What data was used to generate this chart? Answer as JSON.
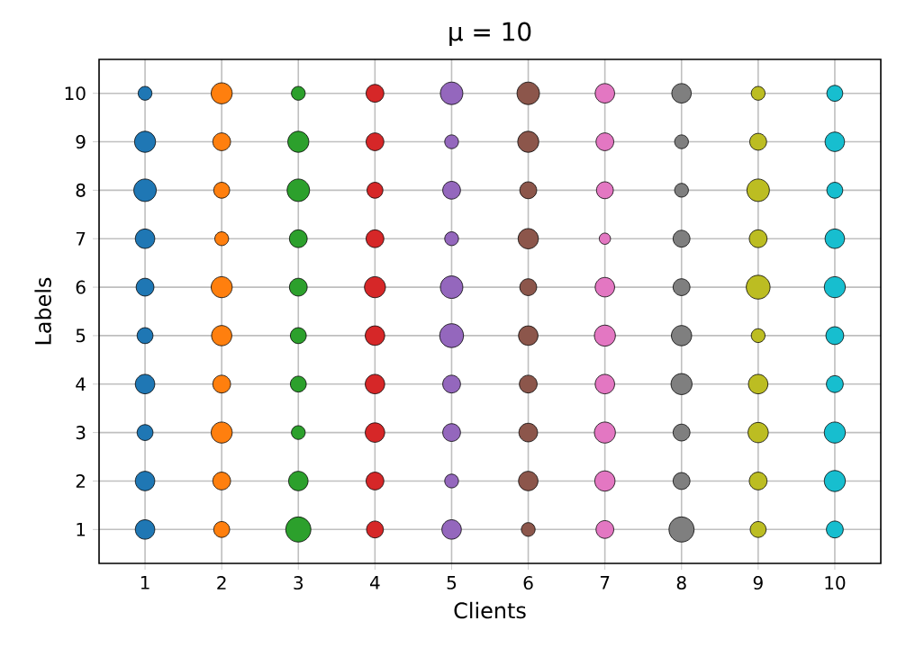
{
  "chart_data": {
    "type": "bubble",
    "title": "μ = 10",
    "xlabel": "Clients",
    "ylabel": "Labels",
    "xlim": [
      0.4,
      10.6
    ],
    "ylim": [
      0.3,
      10.7
    ],
    "xticks": [
      1,
      2,
      3,
      4,
      5,
      6,
      7,
      8,
      9,
      10
    ],
    "yticks": [
      1,
      2,
      3,
      4,
      5,
      6,
      7,
      8,
      9,
      10
    ],
    "grid": true,
    "marker": "circle",
    "series": [
      {
        "color": "#1f77b4",
        "x": [
          1,
          1,
          1,
          1,
          1,
          1,
          1,
          1,
          1,
          1
        ],
        "values": [
          1,
          2,
          3,
          4,
          5,
          6,
          7,
          8,
          9,
          10
        ],
        "sizes": [
          0.6,
          0.6,
          0.4,
          0.6,
          0.4,
          0.5,
          0.6,
          0.8,
          0.7,
          0.3
        ]
      },
      {
        "color": "#ff7f0e",
        "x": [
          2,
          2,
          2,
          2,
          2,
          2,
          2,
          2,
          2,
          2
        ],
        "values": [
          1,
          2,
          3,
          4,
          5,
          6,
          7,
          8,
          9,
          10
        ],
        "sizes": [
          0.4,
          0.5,
          0.7,
          0.5,
          0.65,
          0.7,
          0.3,
          0.4,
          0.5,
          0.7
        ]
      },
      {
        "color": "#2ca02c",
        "x": [
          3,
          3,
          3,
          3,
          3,
          3,
          3,
          3,
          3,
          3
        ],
        "values": [
          1,
          2,
          3,
          4,
          5,
          6,
          7,
          8,
          9,
          10
        ],
        "sizes": [
          1,
          0.6,
          0.3,
          0.4,
          0.4,
          0.5,
          0.5,
          0.8,
          0.7,
          0.3
        ]
      },
      {
        "color": "#d62728",
        "x": [
          4,
          4,
          4,
          4,
          4,
          4,
          4,
          4,
          4,
          4
        ],
        "values": [
          1,
          2,
          3,
          4,
          5,
          6,
          7,
          8,
          9,
          10
        ],
        "sizes": [
          0.45,
          0.5,
          0.6,
          0.6,
          0.6,
          0.7,
          0.5,
          0.4,
          0.5,
          0.5
        ]
      },
      {
        "color": "#9467bd",
        "x": [
          5,
          5,
          5,
          5,
          5,
          5,
          5,
          5,
          5,
          5
        ],
        "values": [
          1,
          2,
          3,
          4,
          5,
          6,
          7,
          8,
          9,
          10
        ],
        "sizes": [
          0.6,
          0.3,
          0.5,
          0.5,
          0.9,
          0.8,
          0.3,
          0.5,
          0.3,
          0.8
        ]
      },
      {
        "color": "#8c564b",
        "x": [
          6,
          6,
          6,
          6,
          6,
          6,
          6,
          6,
          6,
          6
        ],
        "values": [
          1,
          2,
          3,
          4,
          5,
          6,
          7,
          8,
          9,
          10
        ],
        "sizes": [
          0.3,
          0.6,
          0.55,
          0.5,
          0.6,
          0.45,
          0.65,
          0.45,
          0.7,
          0.8
        ]
      },
      {
        "color": "#e377c2",
        "x": [
          7,
          7,
          7,
          7,
          7,
          7,
          7,
          7,
          7,
          7
        ],
        "values": [
          1,
          2,
          3,
          4,
          5,
          6,
          7,
          8,
          9,
          10
        ],
        "sizes": [
          0.5,
          0.65,
          0.7,
          0.6,
          0.7,
          0.6,
          0.2,
          0.45,
          0.5,
          0.6
        ]
      },
      {
        "color": "#7f7f7f",
        "x": [
          8,
          8,
          8,
          8,
          8,
          8,
          8,
          8,
          8,
          8
        ],
        "values": [
          1,
          2,
          3,
          4,
          5,
          6,
          7,
          8,
          9,
          10
        ],
        "sizes": [
          1,
          0.45,
          0.45,
          0.7,
          0.65,
          0.45,
          0.45,
          0.3,
          0.3,
          0.6
        ]
      },
      {
        "color": "#bcbd22",
        "x": [
          9,
          9,
          9,
          9,
          9,
          9,
          9,
          9,
          9,
          9
        ],
        "values": [
          1,
          2,
          3,
          4,
          5,
          6,
          7,
          8,
          9,
          10
        ],
        "sizes": [
          0.4,
          0.5,
          0.65,
          0.6,
          0.3,
          0.9,
          0.5,
          0.8,
          0.45,
          0.3
        ]
      },
      {
        "color": "#17becf",
        "x": [
          10,
          10,
          10,
          10,
          10,
          10,
          10,
          10,
          10,
          10
        ],
        "values": [
          1,
          2,
          3,
          4,
          5,
          6,
          7,
          8,
          9,
          10
        ],
        "sizes": [
          0.45,
          0.7,
          0.7,
          0.45,
          0.5,
          0.7,
          0.6,
          0.4,
          0.6,
          0.4
        ]
      }
    ]
  }
}
